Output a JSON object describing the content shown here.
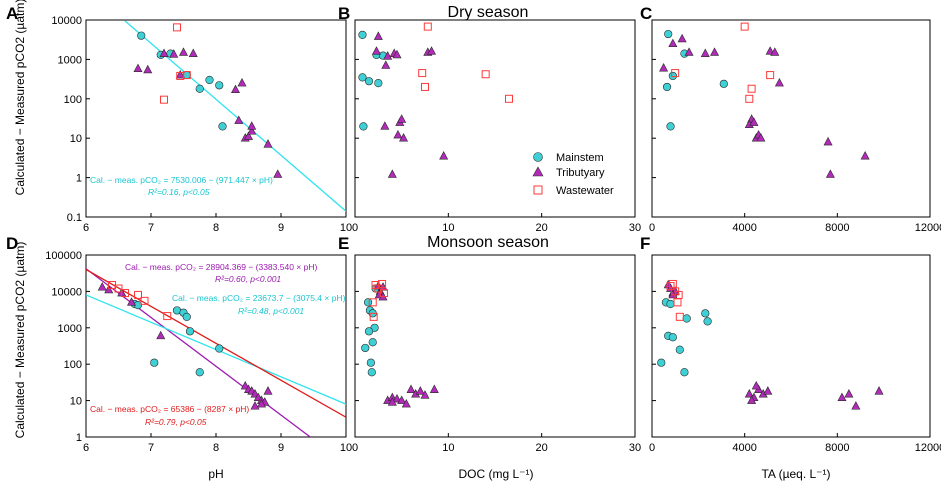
{
  "figure": {
    "row_titles": [
      "Dry season",
      "Monsoon season"
    ],
    "y_label": "Calculated − Measured pCO2 (µatm)",
    "x_labels": [
      "pH",
      "DOC (mg L⁻¹)",
      "TA (µeq. L⁻¹)"
    ],
    "legend": [
      {
        "name": "Mainstem",
        "marker": "circle",
        "color": "#3fd0d6"
      },
      {
        "name": "Tributyary",
        "marker": "triangle",
        "color": "#b12ab8"
      },
      {
        "name": "Wastewater",
        "marker": "square",
        "color": "#ff3a3a"
      }
    ],
    "colors": {
      "mainstem": "#3fd0d6",
      "tributary": "#b12ab8",
      "wastewater": "#ff3a3a",
      "cyan_line": "#2fe4ee",
      "red_line": "#e01b1b",
      "purple_line": "#9d1bb0"
    }
  },
  "chart_data": [
    {
      "panel": "A",
      "type": "scatter",
      "title": "",
      "xlabel": "",
      "ylabel": "Calculated − Measured pCO2 (µatm)",
      "xlim": [
        6,
        10
      ],
      "xticks": [
        "6",
        "7",
        "8",
        "9",
        "10"
      ],
      "ylim": [
        0.1,
        10000
      ],
      "yscale": "log",
      "yticks": [
        "0.1",
        "1",
        "10",
        "100",
        "1000",
        "10000"
      ],
      "series": [
        {
          "name": "Mainstem",
          "x": [
            6.85,
            7.15,
            7.3,
            7.55,
            7.75,
            7.9,
            8.05,
            8.1
          ],
          "y": [
            4000,
            1300,
            1400,
            400,
            180,
            300,
            220,
            20
          ]
        },
        {
          "name": "Tributyary",
          "x": [
            6.8,
            6.95,
            7.2,
            7.35,
            7.5,
            7.65,
            7.45,
            8.3,
            8.4,
            8.45,
            8.5,
            8.55,
            8.35,
            8.55,
            8.8,
            8.95
          ],
          "y": [
            580,
            540,
            1400,
            1350,
            1500,
            1400,
            400,
            170,
            250,
            10,
            11,
            15,
            28,
            20,
            7,
            1.2
          ]
        },
        {
          "name": "Wastewater",
          "x": [
            7.2,
            7.4,
            7.55,
            7.45
          ],
          "y": [
            95,
            6500,
            400,
            380
          ]
        }
      ],
      "fits": [
        {
          "label": "Cal. − meas. pCO₂ = 7530.006 − (971.447 × pH)",
          "stats": "R²=0.16, p<0.05",
          "x": [
            6.6,
            10
          ],
          "y": [
            9500,
            0.14
          ],
          "color": "cyan"
        }
      ],
      "panel_label": "A"
    },
    {
      "panel": "B",
      "type": "scatter",
      "title": "Dry season",
      "xlabel": "",
      "ylabel": "",
      "xlim": [
        0,
        30
      ],
      "xticks": [
        "0",
        "10",
        "20",
        "30"
      ],
      "ylim": [
        0.1,
        10000
      ],
      "yscale": "log",
      "yticks": [],
      "series": [
        {
          "name": "Mainstem",
          "x": [
            0.8,
            2.3,
            3.0,
            0.8,
            1.5,
            2.5,
            0.9
          ],
          "y": [
            4200,
            1300,
            1250,
            350,
            280,
            250,
            20
          ]
        },
        {
          "name": "Tributyary",
          "x": [
            2.5,
            2.3,
            3.5,
            4.2,
            4.5,
            7.8,
            8.2,
            3.2,
            4.8,
            5.0,
            4.6,
            5.2,
            9.5,
            4.0,
            3.3
          ],
          "y": [
            3800,
            1600,
            1200,
            1400,
            1300,
            1500,
            1600,
            20,
            25,
            30,
            12,
            10,
            3.5,
            1.2,
            700
          ]
        },
        {
          "name": "Wastewater",
          "x": [
            7.8,
            7.2,
            14.0,
            16.5,
            7.5
          ],
          "y": [
            6800,
            450,
            420,
            100,
            200
          ]
        }
      ],
      "panel_label": "B"
    },
    {
      "panel": "C",
      "type": "scatter",
      "title": "",
      "xlabel": "",
      "ylabel": "",
      "xlim": [
        0,
        12000
      ],
      "xticks": [
        "0",
        "4000",
        "8000",
        "12000"
      ],
      "ylim": [
        0.1,
        10000
      ],
      "yscale": "log",
      "yticks": [],
      "series": [
        {
          "name": "Mainstem",
          "x": [
            700,
            1400,
            900,
            3100,
            650,
            800
          ],
          "y": [
            4400,
            1400,
            380,
            240,
            200,
            20
          ]
        },
        {
          "name": "Tributyary",
          "x": [
            900,
            1300,
            1600,
            2300,
            2700,
            5100,
            5300,
            5500,
            500,
            4300,
            4200,
            4400,
            4500,
            4600,
            4700,
            7600,
            7700,
            9200
          ],
          "y": [
            2500,
            3300,
            1500,
            1400,
            1500,
            1600,
            1500,
            250,
            600,
            30,
            22,
            25,
            10,
            12,
            10,
            8,
            1.2,
            3.5
          ]
        },
        {
          "name": "Wastewater",
          "x": [
            4000,
            1000,
            4300,
            4200,
            5100
          ],
          "y": [
            6800,
            450,
            180,
            100,
            400
          ]
        }
      ],
      "panel_label": "C"
    },
    {
      "panel": "D",
      "type": "scatter",
      "title": "",
      "xlabel": "pH",
      "ylabel": "Calculated − Measured pCO2 (µatm)",
      "xlim": [
        6,
        10
      ],
      "xticks": [
        "6",
        "7",
        "8",
        "9",
        "10"
      ],
      "ylim": [
        1,
        100000
      ],
      "yscale": "log",
      "yticks": [
        "1",
        "10",
        "100",
        "1000",
        "10000",
        "100000"
      ],
      "series": [
        {
          "name": "Mainstem",
          "x": [
            6.75,
            6.8,
            7.05,
            7.4,
            7.5,
            7.55,
            7.6,
            7.75,
            8.05
          ],
          "y": [
            4500,
            4200,
            110,
            3000,
            2600,
            2000,
            800,
            60,
            270
          ]
        },
        {
          "name": "Tributyary",
          "x": [
            6.25,
            6.35,
            6.55,
            6.7,
            7.15,
            8.45,
            8.5,
            8.55,
            8.6,
            8.65,
            8.7,
            8.75,
            8.6,
            8.7,
            8.8
          ],
          "y": [
            13000,
            11000,
            9000,
            5000,
            600,
            25,
            20,
            18,
            15,
            12,
            10,
            9,
            7,
            8,
            18
          ]
        },
        {
          "name": "Wastewater",
          "x": [
            6.4,
            6.5,
            6.6,
            6.9,
            7.25,
            6.8
          ],
          "y": [
            15000,
            12000,
            9000,
            5500,
            2100,
            8000
          ]
        }
      ],
      "fits": [
        {
          "label": "Cal. − meas. pCO₂ = 28904.369 − (3383.540 × pH)",
          "stats": "R²=0.60, p<0.001",
          "x": [
            6.0,
            9.45
          ],
          "y": [
            42000,
            1
          ],
          "color": "purple"
        },
        {
          "label": "Cal. − meas. pCO₂ = 23673.7 − (3075.4 × pH)",
          "stats": "R²=0.48, p<0.001",
          "x": [
            6.0,
            10.0
          ],
          "y": [
            8000,
            8
          ],
          "color": "cyan"
        },
        {
          "label": "Cal. − meas. pCO₂ = 65386 − (8287 × pH)",
          "stats": "R²=0.79, p<0.05",
          "x": [
            6.0,
            10.0
          ],
          "y": [
            40000,
            3.5
          ],
          "color": "red"
        }
      ],
      "panel_label": "D"
    },
    {
      "panel": "E",
      "type": "scatter",
      "title": "Monsoon season",
      "xlabel": "DOC (mg L⁻¹)",
      "ylabel": "",
      "xlim": [
        0,
        30
      ],
      "xticks": [
        "0",
        "10",
        "20",
        "30"
      ],
      "ylim": [
        1,
        100000
      ],
      "yscale": "log",
      "yticks": [],
      "series": [
        {
          "name": "Mainstem",
          "x": [
            2.2,
            1.4,
            1.6,
            1.9,
            2.1,
            1.5,
            1.9,
            1.1,
            1.7,
            1.8
          ],
          "y": [
            12000,
            5000,
            3000,
            2500,
            1000,
            800,
            400,
            280,
            110,
            60
          ]
        },
        {
          "name": "Tributyary",
          "x": [
            2.5,
            2.7,
            3.0,
            2.6,
            3.0,
            3.5,
            4.0,
            4.5,
            5.0,
            6.0,
            6.5,
            7.0,
            7.5,
            8.5,
            5.5,
            4.0
          ],
          "y": [
            14000,
            10000,
            13000,
            8000,
            7000,
            10,
            12,
            11,
            10,
            20,
            15,
            18,
            14,
            20,
            8,
            9
          ]
        },
        {
          "name": "Wastewater",
          "x": [
            2.2,
            2.5,
            2.9,
            3.1,
            1.9,
            2.0
          ],
          "y": [
            15000,
            12000,
            16000,
            9000,
            5000,
            2000
          ]
        }
      ],
      "panel_label": "E"
    },
    {
      "panel": "F",
      "type": "scatter",
      "title": "",
      "xlabel": "TA (µeq. L⁻¹)",
      "ylabel": "",
      "xlim": [
        0,
        12000
      ],
      "xticks": [
        "0",
        "4000",
        "8000",
        "12000"
      ],
      "ylim": [
        1,
        100000
      ],
      "yscale": "log",
      "yticks": [],
      "series": [
        {
          "name": "Mainstem",
          "x": [
            600,
            800,
            1500,
            2300,
            2400,
            700,
            900,
            1200,
            1400,
            400
          ],
          "y": [
            5000,
            4500,
            1800,
            2500,
            1500,
            600,
            550,
            250,
            60,
            110
          ]
        },
        {
          "name": "Tributyary",
          "x": [
            700,
            800,
            900,
            1000,
            900,
            4200,
            4400,
            4600,
            4800,
            5000,
            4500,
            4300,
            8200,
            8500,
            8800,
            9800
          ],
          "y": [
            15000,
            12000,
            9000,
            10000,
            8000,
            15,
            12,
            20,
            15,
            18,
            25,
            10,
            12,
            15,
            7,
            18
          ]
        },
        {
          "name": "Wastewater",
          "x": [
            800,
            900,
            1000,
            1100,
            1200,
            1150
          ],
          "y": [
            14000,
            16000,
            10000,
            5000,
            2000,
            8000
          ]
        }
      ],
      "panel_label": "F"
    }
  ]
}
